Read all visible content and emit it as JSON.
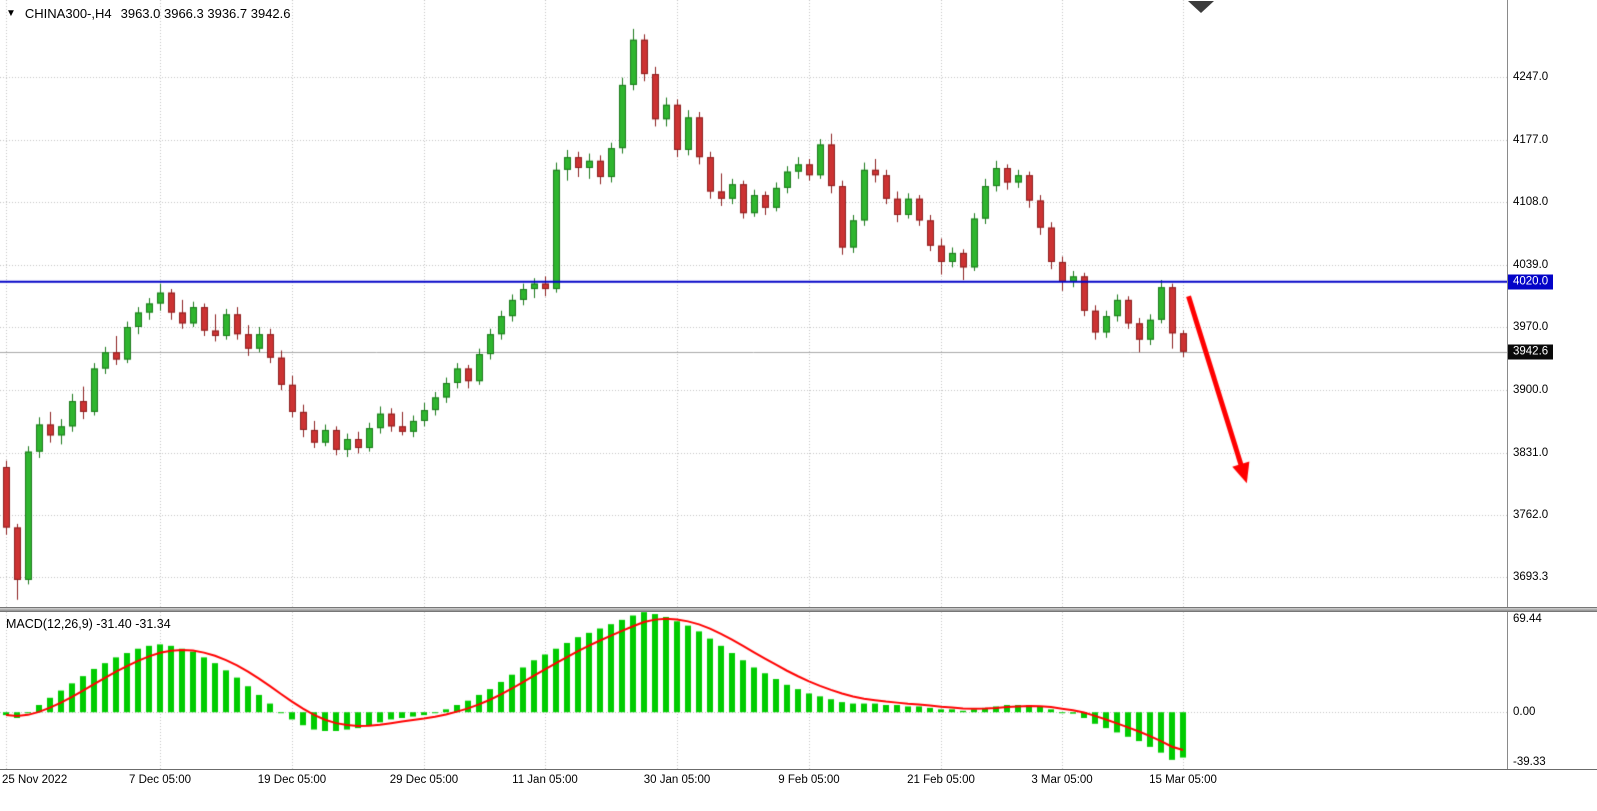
{
  "header": {
    "dropdown_icon": "▼",
    "symbol_period": "CHINA300-,H4",
    "ohlc": "3963.0 3966.3 3936.7 3942.6"
  },
  "colors": {
    "bull": "#2fb52f",
    "bull_border": "#1d7a1d",
    "bear": "#cc3333",
    "bear_border": "#8c2020",
    "macd_bar": "#00cc00",
    "macd_signal": "#ff0000",
    "hline": "#0404c8",
    "current_line": "#a8a8a8",
    "current_badge_bg": "#0a0a0a",
    "arrow": "#ff0000",
    "grid": "#c2c2c2"
  },
  "chart_data": {
    "type": "candlestick",
    "title": "CHINA300-,H4",
    "x_ticks": [
      {
        "index": 0,
        "label": "25 Nov 2022"
      },
      {
        "index": 14,
        "label": "7 Dec 05:00"
      },
      {
        "index": 26,
        "label": "19 Dec 05:00"
      },
      {
        "index": 38,
        "label": "29 Dec 05:00"
      },
      {
        "index": 49,
        "label": "11 Jan 05:00"
      },
      {
        "index": 61,
        "label": "30 Jan 05:00"
      },
      {
        "index": 73,
        "label": "9 Feb 05:00"
      },
      {
        "index": 85,
        "label": "21 Feb 05:00"
      },
      {
        "index": 96,
        "label": "3 Mar 05:00"
      },
      {
        "index": 107,
        "label": "15 Mar 05:00"
      }
    ],
    "main": {
      "ylim": [
        3660,
        4332
      ],
      "grid_prices": [
        {
          "value": 4247.0,
          "label": "4247.0"
        },
        {
          "value": 4177.0,
          "label": "4177.0"
        },
        {
          "value": 4108.0,
          "label": "4108.0"
        },
        {
          "value": 4039.0,
          "label": "4039.0"
        },
        {
          "value": 3970.0,
          "label": "3970.0"
        },
        {
          "value": 3900.0,
          "label": "3900.0"
        },
        {
          "value": 3831.0,
          "label": "3831.0"
        },
        {
          "value": 3762.0,
          "label": "3762.0"
        },
        {
          "value": 3693.3,
          "label": "3693.3"
        }
      ],
      "hline": {
        "price": 4020.0,
        "label": "4020.0"
      },
      "current_price": {
        "price": 3942.6,
        "label": "3942.6"
      },
      "candles": [
        [
          3815,
          3822,
          3740,
          3748
        ],
        [
          3748,
          3752,
          3668,
          3690
        ],
        [
          3690,
          3838,
          3685,
          3832
        ],
        [
          3832,
          3870,
          3825,
          3862
        ],
        [
          3862,
          3876,
          3842,
          3850
        ],
        [
          3850,
          3868,
          3840,
          3860
        ],
        [
          3860,
          3896,
          3854,
          3888
        ],
        [
          3888,
          3904,
          3868,
          3876
        ],
        [
          3876,
          3930,
          3872,
          3924
        ],
        [
          3924,
          3948,
          3918,
          3942
        ],
        [
          3942,
          3960,
          3928,
          3934
        ],
        [
          3934,
          3976,
          3930,
          3970
        ],
        [
          3970,
          3992,
          3962,
          3986
        ],
        [
          3986,
          4002,
          3978,
          3996
        ],
        [
          3996,
          4018,
          3988,
          4008
        ],
        [
          4008,
          4012,
          3978,
          3986
        ],
        [
          3986,
          4000,
          3968,
          3974
        ],
        [
          3974,
          3998,
          3970,
          3992
        ],
        [
          3992,
          3996,
          3960,
          3966
        ],
        [
          3966,
          3984,
          3954,
          3960
        ],
        [
          3960,
          3990,
          3956,
          3984
        ],
        [
          3984,
          3992,
          3956,
          3962
        ],
        [
          3962,
          3972,
          3938,
          3946
        ],
        [
          3946,
          3970,
          3942,
          3962
        ],
        [
          3962,
          3968,
          3930,
          3936
        ],
        [
          3936,
          3944,
          3900,
          3906
        ],
        [
          3906,
          3916,
          3870,
          3876
        ],
        [
          3876,
          3884,
          3848,
          3856
        ],
        [
          3856,
          3866,
          3836,
          3842
        ],
        [
          3842,
          3862,
          3838,
          3856
        ],
        [
          3856,
          3860,
          3828,
          3834
        ],
        [
          3834,
          3852,
          3826,
          3846
        ],
        [
          3846,
          3854,
          3830,
          3836
        ],
        [
          3836,
          3864,
          3832,
          3858
        ],
        [
          3858,
          3882,
          3852,
          3874
        ],
        [
          3874,
          3880,
          3854,
          3860
        ],
        [
          3860,
          3876,
          3850,
          3854
        ],
        [
          3854,
          3872,
          3848,
          3866
        ],
        [
          3866,
          3886,
          3860,
          3878
        ],
        [
          3878,
          3898,
          3872,
          3892
        ],
        [
          3892,
          3914,
          3886,
          3908
        ],
        [
          3908,
          3930,
          3902,
          3924
        ],
        [
          3924,
          3928,
          3902,
          3910
        ],
        [
          3910,
          3946,
          3906,
          3940
        ],
        [
          3940,
          3968,
          3934,
          3962
        ],
        [
          3962,
          3988,
          3956,
          3982
        ],
        [
          3982,
          4006,
          3976,
          4000
        ],
        [
          4000,
          4018,
          3994,
          4012
        ],
        [
          4012,
          4024,
          4002,
          4018
        ],
        [
          4018,
          4026,
          4004,
          4012
        ],
        [
          4012,
          4152,
          4008,
          4144
        ],
        [
          4144,
          4166,
          4132,
          4158
        ],
        [
          4158,
          4164,
          4136,
          4146
        ],
        [
          4146,
          4162,
          4134,
          4154
        ],
        [
          4154,
          4160,
          4128,
          4136
        ],
        [
          4136,
          4174,
          4130,
          4168
        ],
        [
          4168,
          4246,
          4162,
          4238
        ],
        [
          4238,
          4300,
          4232,
          4288
        ],
        [
          4288,
          4294,
          4242,
          4250
        ],
        [
          4250,
          4258,
          4192,
          4200
        ],
        [
          4200,
          4224,
          4192,
          4216
        ],
        [
          4216,
          4222,
          4158,
          4166
        ],
        [
          4166,
          4210,
          4160,
          4202
        ],
        [
          4202,
          4208,
          4150,
          4158
        ],
        [
          4158,
          4164,
          4112,
          4120
        ],
        [
          4120,
          4140,
          4104,
          4112
        ],
        [
          4112,
          4134,
          4106,
          4128
        ],
        [
          4128,
          4132,
          4090,
          4096
        ],
        [
          4096,
          4122,
          4092,
          4116
        ],
        [
          4116,
          4120,
          4094,
          4102
        ],
        [
          4102,
          4130,
          4098,
          4124
        ],
        [
          4124,
          4148,
          4118,
          4142
        ],
        [
          4142,
          4158,
          4134,
          4150
        ],
        [
          4150,
          4156,
          4132,
          4138
        ],
        [
          4138,
          4178,
          4134,
          4172
        ],
        [
          4172,
          4184,
          4118,
          4126
        ],
        [
          4126,
          4132,
          4050,
          4058
        ],
        [
          4058,
          4094,
          4052,
          4088
        ],
        [
          4088,
          4152,
          4082,
          4144
        ],
        [
          4144,
          4156,
          4130,
          4138
        ],
        [
          4138,
          4144,
          4106,
          4112
        ],
        [
          4112,
          4120,
          4086,
          4094
        ],
        [
          4094,
          4118,
          4090,
          4112
        ],
        [
          4112,
          4116,
          4082,
          4088
        ],
        [
          4088,
          4094,
          4054,
          4060
        ],
        [
          4060,
          4068,
          4028,
          4042
        ],
        [
          4042,
          4058,
          4036,
          4052
        ],
        [
          4052,
          4056,
          4022,
          4036
        ],
        [
          4036,
          4096,
          4032,
          4090
        ],
        [
          4090,
          4134,
          4084,
          4126
        ],
        [
          4126,
          4154,
          4120,
          4146
        ],
        [
          4146,
          4150,
          4122,
          4130
        ],
        [
          4130,
          4144,
          4124,
          4138
        ],
        [
          4138,
          4142,
          4102,
          4110
        ],
        [
          4110,
          4116,
          4072,
          4080
        ],
        [
          4080,
          4086,
          4034,
          4042
        ],
        [
          4042,
          4048,
          4010,
          4020
        ],
        [
          4020,
          4032,
          4014,
          4026
        ],
        [
          4026,
          4030,
          3982,
          3988
        ],
        [
          3988,
          3994,
          3956,
          3964
        ],
        [
          3964,
          3988,
          3958,
          3982
        ],
        [
          3982,
          4006,
          3976,
          4000
        ],
        [
          4000,
          4004,
          3968,
          3974
        ],
        [
          3974,
          3980,
          3942,
          3956
        ],
        [
          3956,
          3984,
          3950,
          3978
        ],
        [
          3978,
          4022,
          3974,
          4014
        ],
        [
          4014,
          4018,
          3946,
          3963
        ],
        [
          3963,
          3966.3,
          3936.7,
          3942.6
        ]
      ]
    },
    "macd": {
      "legend": "MACD(12,26,9) -31.40 -31.34",
      "params": "12,26,9",
      "main_value": -31.4,
      "signal_value": -31.34,
      "signal_period": 9,
      "ylim": [
        -39.33,
        69.44
      ],
      "axis_labels": [
        {
          "value": 69.44,
          "label": "69.44"
        },
        {
          "value": 0,
          "label": "0.00"
        },
        {
          "value": -39.33,
          "label": "-39.33"
        }
      ],
      "values": [
        -2,
        -4,
        0,
        5,
        10,
        15,
        20,
        25,
        30,
        34,
        38,
        41,
        44,
        46,
        47,
        46,
        44,
        42,
        38,
        34,
        29,
        24,
        18,
        12,
        6,
        0,
        -5,
        -9,
        -12,
        -13,
        -13,
        -12,
        -11,
        -9,
        -7,
        -5,
        -4,
        -3,
        -2,
        0,
        2,
        5,
        8,
        12,
        16,
        21,
        26,
        31,
        36,
        40,
        44,
        48,
        52,
        55,
        58,
        61,
        64,
        67,
        69.4,
        68,
        66,
        63,
        60,
        56,
        51,
        46,
        41,
        36,
        31,
        27,
        23,
        19,
        16,
        13,
        11,
        9,
        7,
        6,
        6,
        6,
        5,
        5,
        4,
        4,
        3,
        2,
        2,
        1,
        2,
        3,
        4,
        5,
        5,
        5,
        4,
        2,
        0,
        -1,
        -4,
        -8,
        -11,
        -14,
        -17,
        -20,
        -24,
        -28,
        -33,
        -31.4
      ]
    },
    "annotations": {
      "arrow": {
        "x1_index": 107.5,
        "y1_price": 4004,
        "x2_index": 112.8,
        "y2_price": 3797
      },
      "shift_marker_index": 108.6
    }
  }
}
